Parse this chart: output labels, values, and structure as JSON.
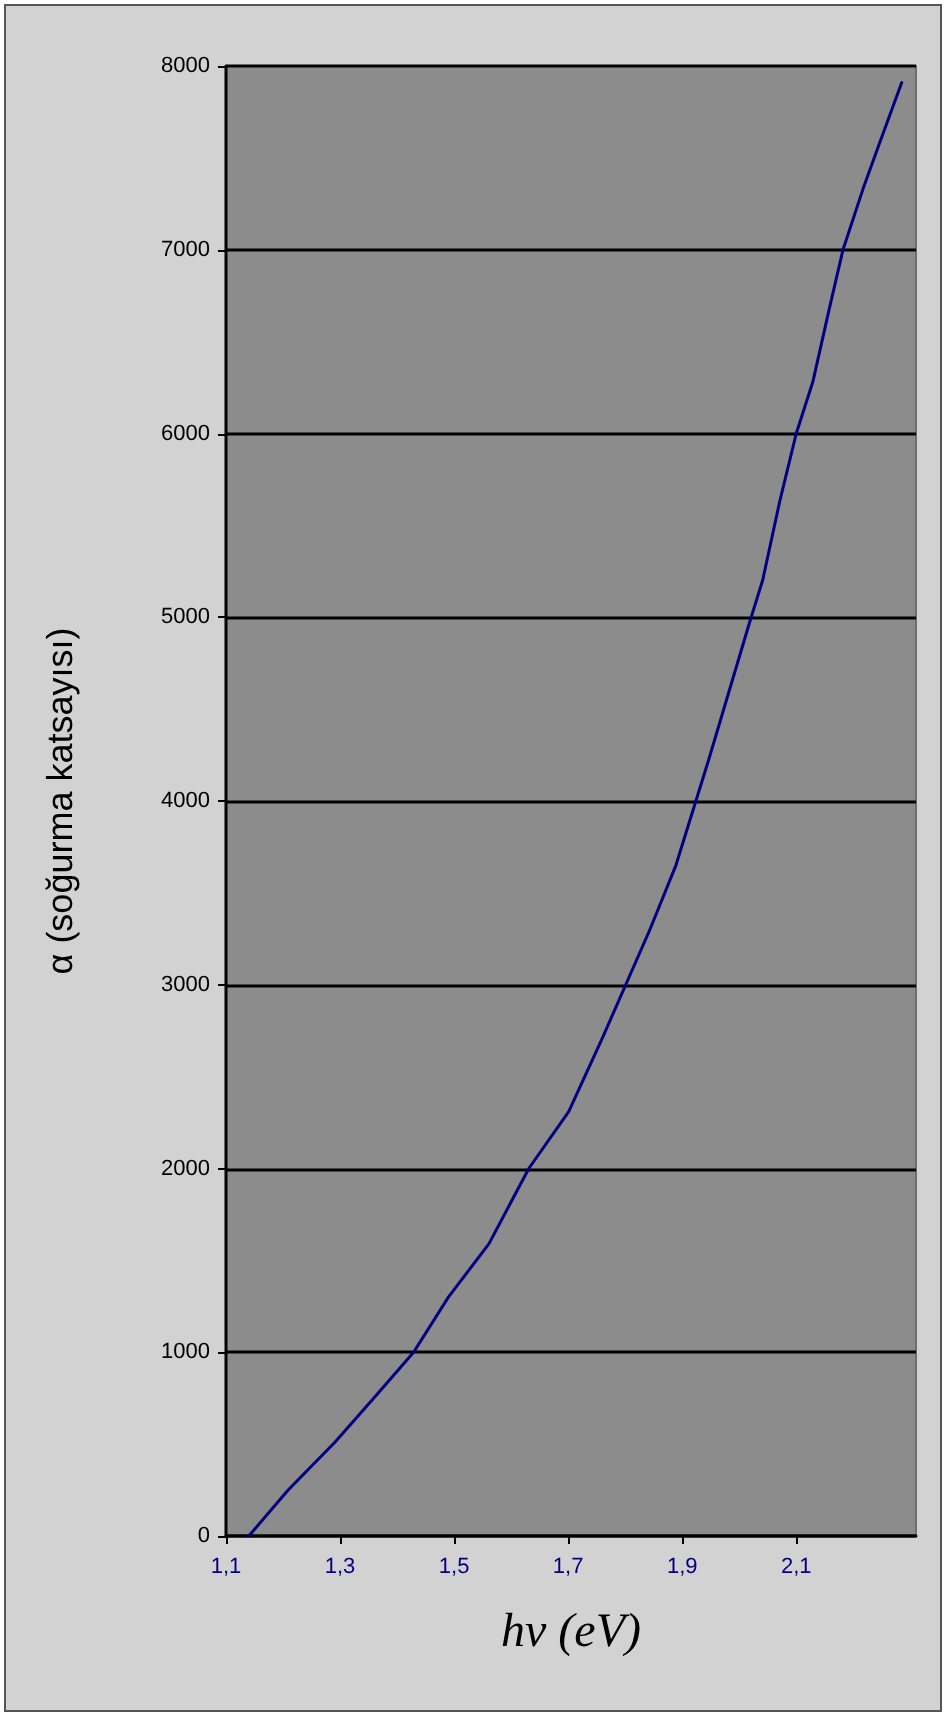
{
  "chart_data": {
    "type": "line",
    "xlabel": "hν (eV)",
    "ylabel": "α (soğurma katsayısı)",
    "x": [
      1.14,
      1.209,
      1.291,
      1.362,
      1.429,
      1.49,
      1.561,
      1.631,
      1.701,
      1.76,
      1.801,
      1.842,
      1.889,
      1.924,
      1.947,
      1.971,
      2.018,
      2.041,
      2.071,
      2.1,
      2.129,
      2.158,
      2.182,
      2.217,
      2.246,
      2.285
    ],
    "values": [
      0,
      250,
      510,
      760,
      1000,
      1300,
      1590,
      2000,
      2310,
      2710,
      3000,
      3290,
      3650,
      4000,
      4230,
      4480,
      4970,
      5200,
      5630,
      6000,
      6280,
      6680,
      7000,
      7330,
      7580,
      7910
    ],
    "color": "#000080",
    "xlim": [
      1.1,
      2.31
    ],
    "xticks": [
      {
        "value": 1.1,
        "label": "1,1"
      },
      {
        "value": 1.3,
        "label": "1,3"
      },
      {
        "value": 1.5,
        "label": "1,5"
      },
      {
        "value": 1.7,
        "label": "1,7"
      },
      {
        "value": 1.9,
        "label": "1,9"
      },
      {
        "value": 2.1,
        "label": "2,1"
      }
    ],
    "ylim": [
      0,
      8000
    ],
    "yticks": [
      0,
      1000,
      2000,
      3000,
      4000,
      5000,
      6000,
      7000,
      8000
    ],
    "grid": "y",
    "marker": "none"
  }
}
